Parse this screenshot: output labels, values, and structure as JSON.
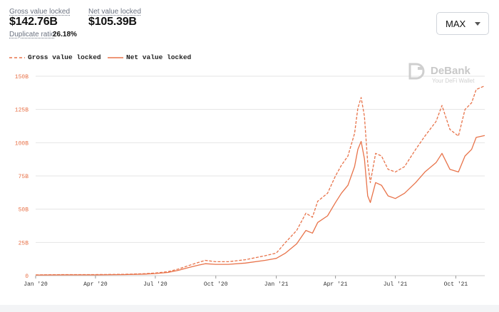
{
  "stats": {
    "gross_label": "Gross value locked",
    "gross_value": "$142.76B",
    "net_label": "Net value locked",
    "net_value": "$105.39B",
    "duplicate_label": "Duplicate ratio",
    "duplicate_value": "26.18%"
  },
  "range_select": {
    "selected": "MAX"
  },
  "watermark": {
    "brand": "DeBank",
    "tagline": "Your DeFi Wallet"
  },
  "colors": {
    "accent": "#e8734a",
    "grid": "#e5e5e5",
    "tick_y": "#e8734a",
    "tick_x": "#333333"
  },
  "chart_data": {
    "type": "line",
    "title": "",
    "xlabel": "",
    "ylabel": "",
    "ylim": [
      0,
      150
    ],
    "y_unit": "B",
    "y_ticks": [
      "0",
      "25B",
      "50B",
      "75B",
      "100B",
      "125B",
      "150B"
    ],
    "x_range": [
      "2020-01-01",
      "2021-11-14"
    ],
    "x_ticks": [
      {
        "date": "2020-01-01",
        "label": "Jan '20"
      },
      {
        "date": "2020-04-01",
        "label": "Apr '20"
      },
      {
        "date": "2020-07-01",
        "label": "Jul '20"
      },
      {
        "date": "2020-10-01",
        "label": "Oct '20"
      },
      {
        "date": "2021-01-01",
        "label": "Jan '21"
      },
      {
        "date": "2021-04-01",
        "label": "Apr '21"
      },
      {
        "date": "2021-07-01",
        "label": "Jul '21"
      },
      {
        "date": "2021-10-01",
        "label": "Oct '21"
      }
    ],
    "grid": true,
    "legend_position": "top-left",
    "series": [
      {
        "name": "Gross value locked",
        "style": "dashed",
        "points": [
          [
            "2020-01-01",
            0.6
          ],
          [
            "2020-02-15",
            0.8
          ],
          [
            "2020-04-01",
            0.8
          ],
          [
            "2020-05-15",
            1.0
          ],
          [
            "2020-06-15",
            1.5
          ],
          [
            "2020-07-01",
            2.0
          ],
          [
            "2020-07-20",
            3.0
          ],
          [
            "2020-08-05",
            5.0
          ],
          [
            "2020-08-20",
            7.5
          ],
          [
            "2020-09-05",
            10.0
          ],
          [
            "2020-09-15",
            11.5
          ],
          [
            "2020-10-01",
            10.5
          ],
          [
            "2020-10-20",
            10.5
          ],
          [
            "2020-11-15",
            12.0
          ],
          [
            "2020-12-15",
            15.0
          ],
          [
            "2021-01-01",
            17.0
          ],
          [
            "2021-01-15",
            25.0
          ],
          [
            "2021-02-01",
            34.0
          ],
          [
            "2021-02-15",
            47.0
          ],
          [
            "2021-02-25",
            44.0
          ],
          [
            "2021-03-05",
            56.0
          ],
          [
            "2021-03-20",
            62.0
          ],
          [
            "2021-04-01",
            75.0
          ],
          [
            "2021-04-10",
            83.0
          ],
          [
            "2021-04-20",
            90.0
          ],
          [
            "2021-04-30",
            107.0
          ],
          [
            "2021-05-05",
            126.0
          ],
          [
            "2021-05-10",
            134.0
          ],
          [
            "2021-05-15",
            120.0
          ],
          [
            "2021-05-20",
            85.0
          ],
          [
            "2021-05-24",
            70.0
          ],
          [
            "2021-06-01",
            92.0
          ],
          [
            "2021-06-10",
            90.0
          ],
          [
            "2021-06-20",
            80.0
          ],
          [
            "2021-07-01",
            78.0
          ],
          [
            "2021-07-15",
            82.0
          ],
          [
            "2021-08-01",
            95.0
          ],
          [
            "2021-08-15",
            105.0
          ],
          [
            "2021-09-01",
            116.0
          ],
          [
            "2021-09-10",
            128.0
          ],
          [
            "2021-09-22",
            110.0
          ],
          [
            "2021-10-05",
            105.0
          ],
          [
            "2021-10-15",
            125.0
          ],
          [
            "2021-10-25",
            130.0
          ],
          [
            "2021-11-01",
            140.0
          ],
          [
            "2021-11-14",
            142.76
          ]
        ]
      },
      {
        "name": "Net value locked",
        "style": "solid",
        "points": [
          [
            "2020-01-01",
            0.5
          ],
          [
            "2020-02-15",
            0.6
          ],
          [
            "2020-04-01",
            0.6
          ],
          [
            "2020-05-15",
            0.8
          ],
          [
            "2020-06-15",
            1.2
          ],
          [
            "2020-07-01",
            1.6
          ],
          [
            "2020-07-20",
            2.4
          ],
          [
            "2020-08-05",
            4.0
          ],
          [
            "2020-08-20",
            6.0
          ],
          [
            "2020-09-05",
            8.0
          ],
          [
            "2020-09-15",
            9.0
          ],
          [
            "2020-10-01",
            8.5
          ],
          [
            "2020-10-20",
            8.5
          ],
          [
            "2020-11-15",
            9.5
          ],
          [
            "2020-12-15",
            11.5
          ],
          [
            "2021-01-01",
            13.0
          ],
          [
            "2021-01-15",
            17.0
          ],
          [
            "2021-02-01",
            24.0
          ],
          [
            "2021-02-15",
            34.0
          ],
          [
            "2021-02-25",
            32.0
          ],
          [
            "2021-03-05",
            40.0
          ],
          [
            "2021-03-20",
            45.0
          ],
          [
            "2021-04-01",
            55.0
          ],
          [
            "2021-04-10",
            62.0
          ],
          [
            "2021-04-20",
            68.0
          ],
          [
            "2021-04-30",
            82.0
          ],
          [
            "2021-05-05",
            95.0
          ],
          [
            "2021-05-10",
            101.0
          ],
          [
            "2021-05-15",
            88.0
          ],
          [
            "2021-05-20",
            60.0
          ],
          [
            "2021-05-24",
            55.0
          ],
          [
            "2021-06-01",
            70.0
          ],
          [
            "2021-06-10",
            68.0
          ],
          [
            "2021-06-20",
            60.0
          ],
          [
            "2021-07-01",
            58.0
          ],
          [
            "2021-07-15",
            62.0
          ],
          [
            "2021-08-01",
            70.0
          ],
          [
            "2021-08-15",
            78.0
          ],
          [
            "2021-09-01",
            85.0
          ],
          [
            "2021-09-10",
            92.0
          ],
          [
            "2021-09-22",
            80.0
          ],
          [
            "2021-10-05",
            78.0
          ],
          [
            "2021-10-15",
            90.0
          ],
          [
            "2021-10-25",
            95.0
          ],
          [
            "2021-11-01",
            104.0
          ],
          [
            "2021-11-14",
            105.39
          ]
        ]
      }
    ]
  }
}
